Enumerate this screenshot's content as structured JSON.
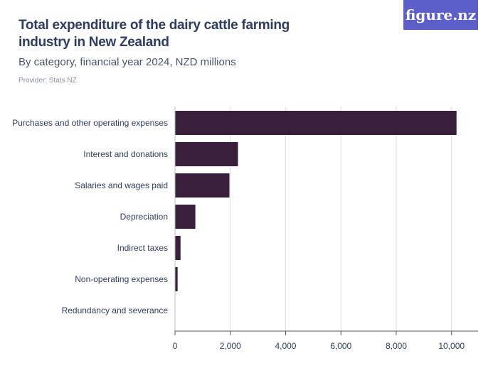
{
  "header": {
    "title": "Total expenditure of the dairy cattle farming industry in New Zealand",
    "subtitle": "By category, financial year 2024, NZD millions",
    "provider": "Provider: Stats NZ",
    "logo": "figure.nz"
  },
  "colors": {
    "bar": "#3a1f3d",
    "logo_bg": "#5b5fc7",
    "grid": "#dddddd"
  },
  "chart_data": {
    "type": "bar",
    "orientation": "horizontal",
    "categories": [
      "Purchases and other operating expenses",
      "Interest and donations",
      "Salaries and wages paid",
      "Depreciation",
      "Indirect taxes",
      "Non-operating expenses",
      "Redundancy and severance"
    ],
    "values": [
      10180,
      2277,
      1968,
      735,
      200,
      95,
      0
    ],
    "xlim": [
      0,
      10500
    ],
    "xticks": [
      0,
      2000,
      4000,
      6000,
      8000,
      10000
    ],
    "xtick_labels": [
      "0",
      "2,000",
      "4,000",
      "6,000",
      "8,000",
      "10,000"
    ],
    "grid": true
  }
}
